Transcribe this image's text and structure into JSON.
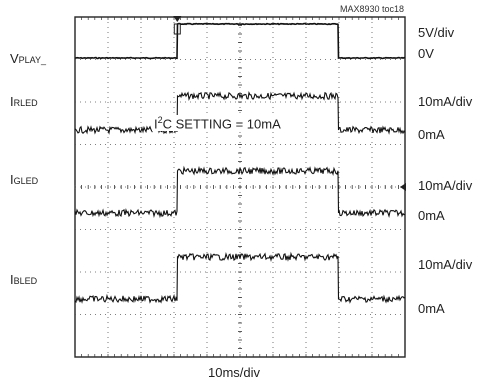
{
  "chart_data": {
    "type": "line",
    "title": "",
    "figure_id": "MAX8930 toc18",
    "time_scale": "10ms/div",
    "annotation": "I²C SETTING = 10mA",
    "grid": "dotted 10x8 divisions with center crosshair ticks",
    "channels": [
      {
        "label_main": "V",
        "label_sub": "PLAY_",
        "scale": "5V/div",
        "zero": "0V",
        "low": 0,
        "high": 5,
        "unit": "V",
        "rise_ms": 31,
        "fall_ms": 80,
        "noise": "low"
      },
      {
        "label_main": "I",
        "label_sub": "RLED",
        "scale": "10mA/div",
        "zero": "0mA",
        "low": 0,
        "high": 10,
        "unit": "mA",
        "rise_ms": 31,
        "fall_ms": 80,
        "noise": "high"
      },
      {
        "label_main": "I",
        "label_sub": "GLED",
        "scale": "10mA/div",
        "zero": "0mA",
        "low": 0,
        "high": 10,
        "unit": "mA",
        "rise_ms": 31,
        "fall_ms": 80,
        "noise": "high"
      },
      {
        "label_main": "I",
        "label_sub": "BLED",
        "scale": "10mA/div",
        "zero": "0mA",
        "low": 0,
        "high": 10,
        "unit": "mA",
        "rise_ms": 31,
        "fall_ms": 80,
        "noise": "high"
      }
    ]
  },
  "settings": {
    "prefix": "I",
    "superscript": "2",
    "rest": "C SETTING = 10mA"
  }
}
